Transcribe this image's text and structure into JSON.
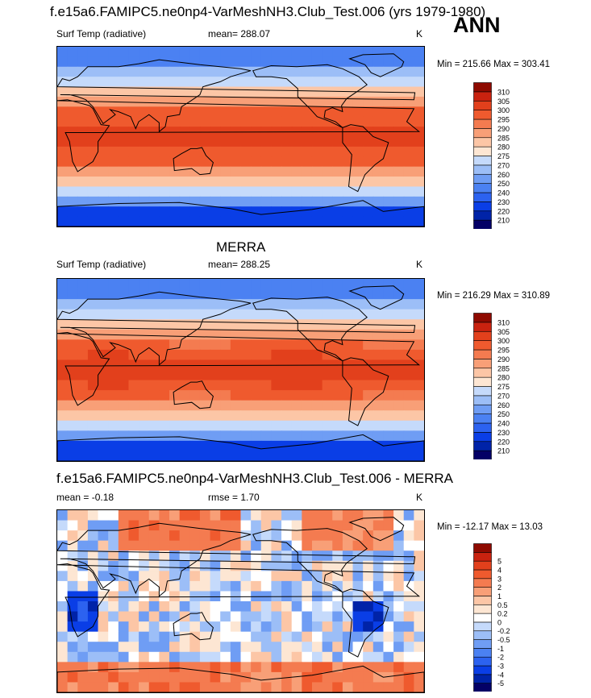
{
  "main_title": "f.e15a6.FAMIPC5.ne0np4-VarMeshNH3.Club_Test.006 (yrs 1979-1980)",
  "season_label": "ANN",
  "colors": {
    "temp_palette": [
      "#040066",
      "#0023a8",
      "#0a3ee6",
      "#2c62f0",
      "#4b81f2",
      "#6f9df4",
      "#9cbef7",
      "#c5dafb",
      "#fde6d3",
      "#fcc6a6",
      "#f89f77",
      "#f47b50",
      "#ef5a2e",
      "#e2401c",
      "#c9220f",
      "#8e0a00"
    ],
    "diff_palette": [
      "#040066",
      "#0023a8",
      "#0a3ee6",
      "#2c62f0",
      "#4b81f2",
      "#6f9df4",
      "#9cbef7",
      "#c5dafb",
      "#ffffff",
      "#fde6d3",
      "#fcc6a6",
      "#f89f77",
      "#f47b50",
      "#ef5a2e",
      "#e2401c",
      "#c9220f",
      "#8e0a00"
    ],
    "land_outline": "#000000"
  },
  "chart_data": [
    {
      "type": "heatmap",
      "panel_title": "",
      "variable_label": "Surf Temp (radiative)",
      "mean_text": "mean= 288.07",
      "units": "K",
      "minmax_text": "Min = 215.66 Max = 303.41",
      "field": "model",
      "min": 215.66,
      "max": 303.41,
      "mean": 288.07,
      "levels": [
        210,
        220,
        230,
        240,
        250,
        260,
        270,
        275,
        280,
        285,
        290,
        295,
        300,
        305,
        310
      ],
      "level_labels": [
        "210",
        "220",
        "230",
        "240",
        "250",
        "260",
        "270",
        "275",
        "280",
        "285",
        "290",
        "295",
        "300",
        "305",
        "310"
      ],
      "lon_range": [
        0,
        360
      ],
      "lat_range": [
        -90,
        90
      ]
    },
    {
      "type": "heatmap",
      "panel_title": "MERRA",
      "variable_label": "Surf Temp (radiative)",
      "mean_text": "mean= 288.25",
      "units": "K",
      "minmax_text": "Min = 216.29 Max = 310.89",
      "field": "obs",
      "min": 216.29,
      "max": 310.89,
      "mean": 288.25,
      "levels": [
        210,
        220,
        230,
        240,
        250,
        260,
        270,
        275,
        280,
        285,
        290,
        295,
        300,
        305,
        310
      ],
      "level_labels": [
        "210",
        "220",
        "230",
        "240",
        "250",
        "260",
        "270",
        "275",
        "280",
        "285",
        "290",
        "295",
        "300",
        "305",
        "310"
      ],
      "lon_range": [
        0,
        360
      ],
      "lat_range": [
        -90,
        90
      ]
    },
    {
      "type": "heatmap",
      "panel_title": "f.e15a6.FAMIPC5.ne0np4-VarMeshNH3.Club_Test.006 - MERRA",
      "variable_label": "mean =  -0.18",
      "mean_text": "rmse =   1.70",
      "units": "K",
      "minmax_text": "Min = -12.17 Max =  13.03",
      "field": "diff",
      "min": -12.17,
      "max": 13.03,
      "mean": -0.18,
      "rmse": 1.7,
      "levels": [
        -5,
        -4,
        -3,
        -2,
        -1,
        -0.5,
        -0.2,
        0,
        0.2,
        0.5,
        1,
        2,
        3,
        4,
        5
      ],
      "level_labels": [
        "-5",
        "-4",
        "-3",
        "-2",
        "-1",
        "-0.5",
        "-0.2",
        "0",
        "0.2",
        "0.5",
        "1",
        "2",
        "3",
        "4",
        "5"
      ],
      "lon_range": [
        0,
        360
      ],
      "lat_range": [
        -90,
        90
      ]
    }
  ]
}
